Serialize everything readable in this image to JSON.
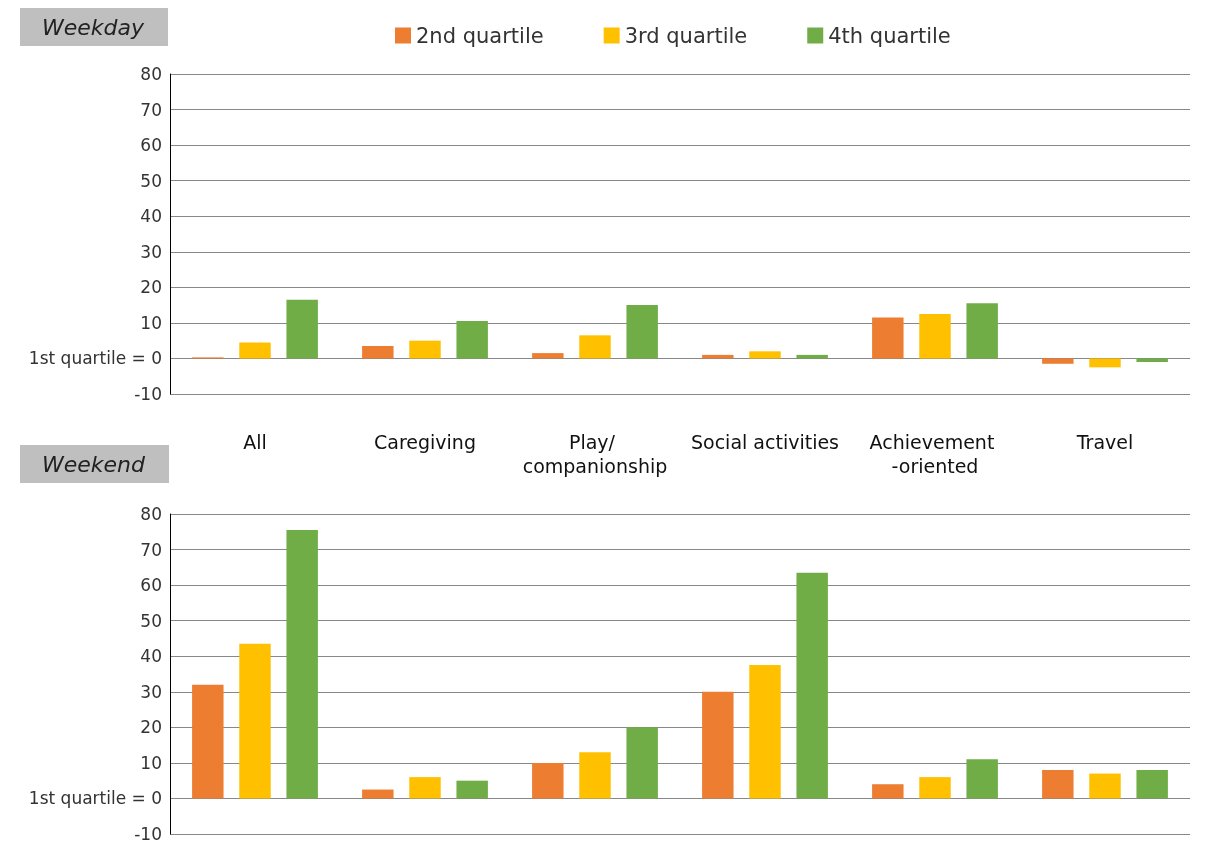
{
  "chart_data": [
    {
      "type": "bar",
      "title": "Weekday",
      "categories": [
        "All",
        "Caregiving",
        "Play/ companionship",
        "Social activities",
        "Achievement -oriented",
        "Travel"
      ],
      "series": [
        {
          "name": "2nd quartile",
          "color": "#ed7d31",
          "values": [
            0.3,
            3.5,
            1.5,
            1,
            11.5,
            -1.5
          ]
        },
        {
          "name": "3rd quartile",
          "color": "#ffc000",
          "values": [
            4.5,
            5,
            6.5,
            2,
            12.5,
            -2.5
          ]
        },
        {
          "name": "4th quartile",
          "color": "#70ad47",
          "values": [
            16.5,
            10.5,
            15,
            1,
            15.5,
            -1
          ]
        }
      ],
      "ylim": [
        -10,
        80
      ],
      "yticks": [
        -10,
        {
          "value": 0,
          "label": "1st quartile = 0"
        },
        10,
        20,
        30,
        40,
        50,
        60,
        70,
        80
      ],
      "grid": "y",
      "legend": "top"
    },
    {
      "type": "bar",
      "title": "Weekend",
      "categories": [
        "All",
        "Caregiving",
        "Play/ companionship",
        "Social activities",
        "Achievement -oriented",
        "Travel"
      ],
      "series": [
        {
          "color": "#ed7d31",
          "values": [
            32,
            2.5,
            10,
            30,
            4,
            8
          ]
        },
        {
          "color": "#ffc000",
          "values": [
            43.5,
            6,
            13,
            37.5,
            6,
            7
          ]
        },
        {
          "color": "#70ad47",
          "values": [
            75.5,
            5,
            20,
            63.5,
            11,
            8
          ]
        }
      ],
      "ylim": [
        -10,
        80
      ],
      "yticks": [
        -10,
        {
          "value": 0,
          "label": "1st quartile = 0"
        },
        10,
        20,
        30,
        40,
        50,
        60,
        70,
        80
      ],
      "grid": "y",
      "tick_labels": "y"
    }
  ]
}
